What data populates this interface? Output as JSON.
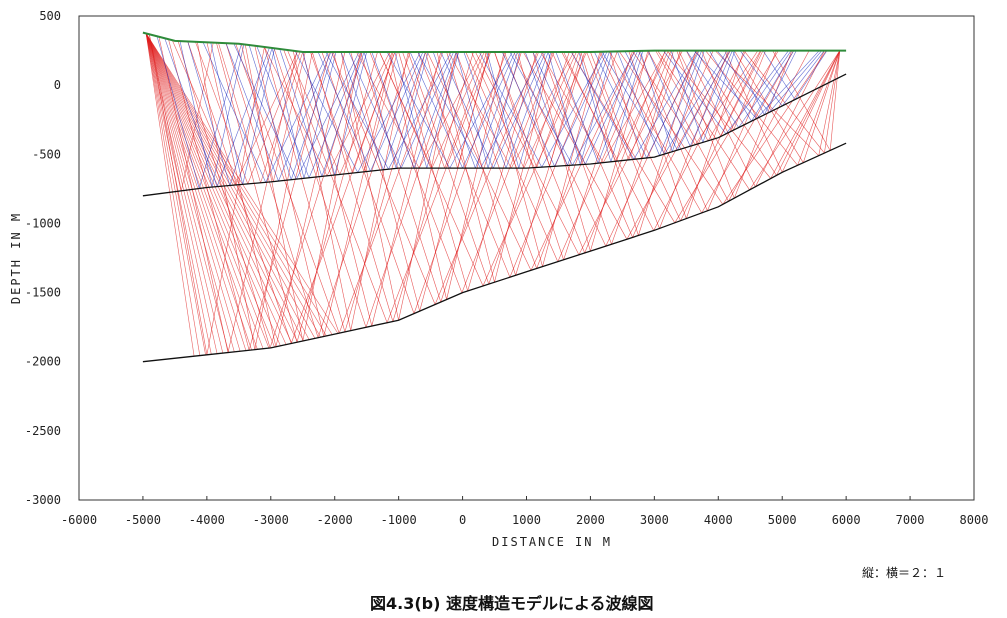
{
  "chart_data": {
    "type": "line",
    "title": "",
    "xlabel": "DISTANCE IN  M",
    "ylabel": "DEPTH IN  M",
    "xlim": [
      -6000,
      8000
    ],
    "ylim": [
      -3000,
      500
    ],
    "xticks": [
      -6000,
      -5000,
      -4000,
      -3000,
      -2000,
      -1000,
      0,
      1000,
      2000,
      3000,
      4000,
      5000,
      6000,
      7000,
      8000
    ],
    "yticks": [
      500,
      0,
      -500,
      -1000,
      -1500,
      -2000,
      -2500,
      -3000
    ],
    "grid": false,
    "series": [
      {
        "x": [
          -5000,
          -4500,
          -3500,
          -2500,
          -2000,
          -1000,
          0,
          1000,
          2000,
          3000,
          4000,
          5000,
          6000
        ],
        "y": [
          380,
          320,
          300,
          240,
          240,
          240,
          240,
          240,
          240,
          250,
          250,
          250,
          250
        ]
      },
      {
        "x": [
          -5000,
          -4000,
          -3000,
          -2000,
          -1000,
          0,
          1000,
          2000,
          3000,
          4000,
          5000,
          6000
        ],
        "y": [
          -800,
          -740,
          -700,
          -650,
          -600,
          -600,
          -600,
          -570,
          -520,
          -380,
          -150,
          80
        ]
      },
      {
        "x": [
          -5000,
          -4000,
          -3000,
          -2000,
          -1000,
          0,
          1000,
          2000,
          3000,
          4000,
          5000,
          6000
        ],
        "y": [
          -2000,
          -1950,
          -1900,
          -1800,
          -1700,
          -1500,
          -1350,
          -1200,
          -1050,
          -880,
          -630,
          -420
        ]
      }
    ],
    "ray_colors": {
      "shallow": "#1f2fc0",
      "deep": "#e02020",
      "surface": "#2e8b3a",
      "boundary": "#111111"
    }
  },
  "footer": {
    "ratio_note": "縦：横＝２：１",
    "caption": "図4.3(b)  速度構造モデルによる波線図"
  }
}
